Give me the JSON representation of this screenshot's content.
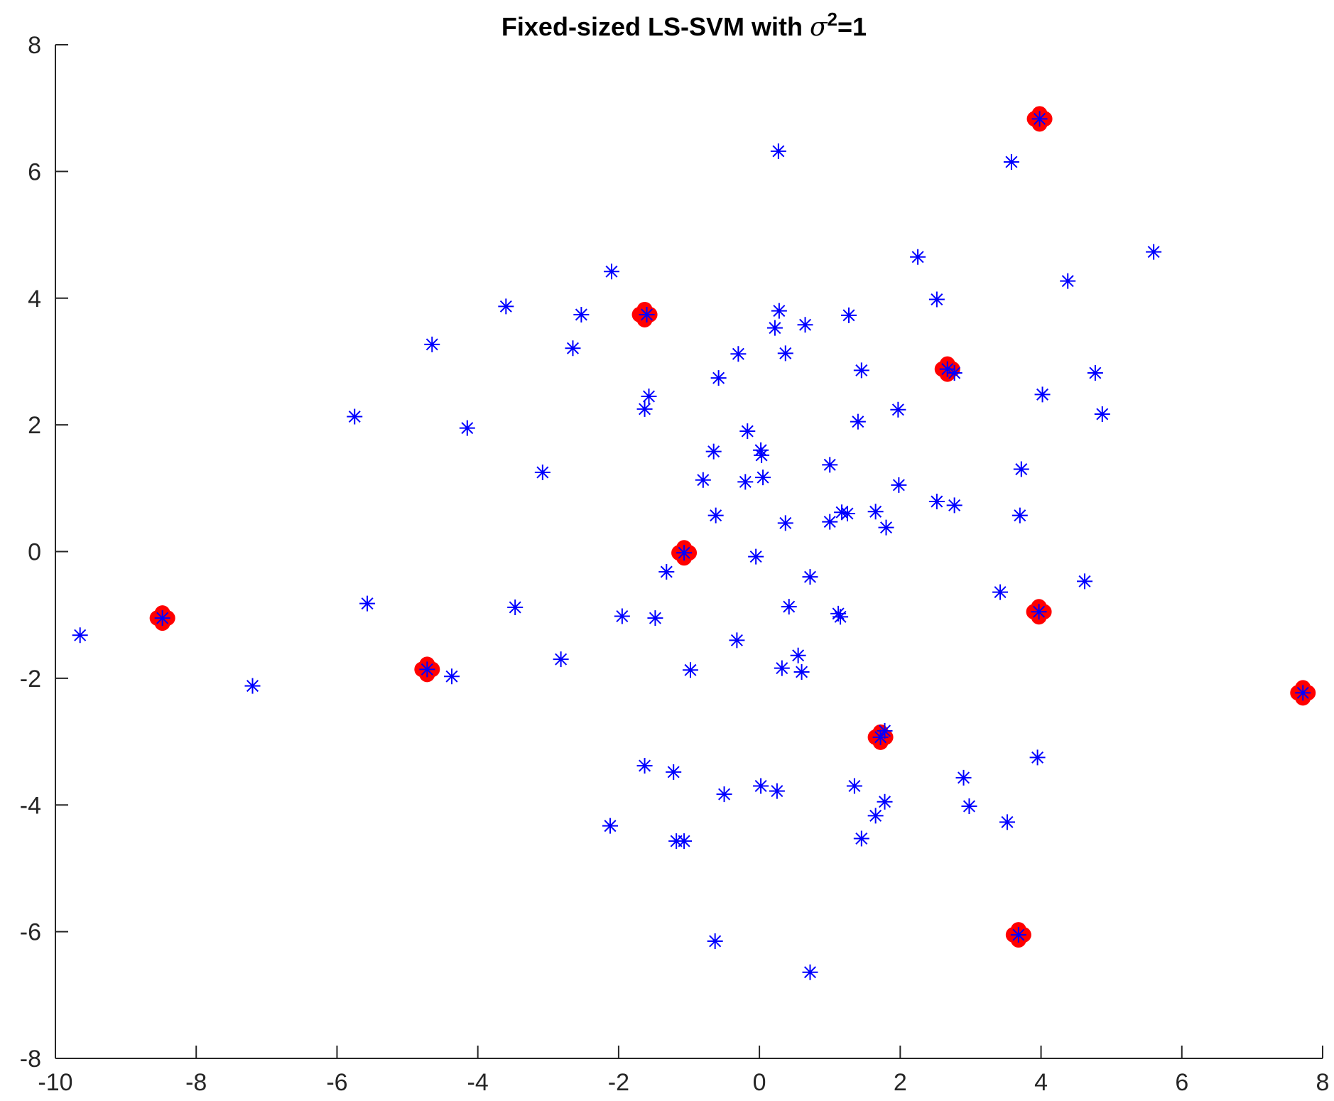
{
  "chart_data": {
    "type": "scatter",
    "title": {
      "prefix": "Fixed-sized LS-SVM with ",
      "symbol": "σ",
      "superscript": "2",
      "suffix": "=1"
    },
    "xlabel": "",
    "ylabel": "",
    "xlim": [
      -10,
      8
    ],
    "ylim": [
      -8,
      8
    ],
    "xticks": [
      -10,
      -8,
      -6,
      -4,
      -2,
      0,
      2,
      4,
      6,
      8
    ],
    "yticks": [
      -8,
      -6,
      -4,
      -2,
      0,
      2,
      4,
      6,
      8
    ],
    "grid": false,
    "legend": "none",
    "series": [
      {
        "marker": "asterisk",
        "color": "#0000ff",
        "points": [
          [
            -9.65,
            -1.32
          ],
          [
            -7.2,
            -2.12
          ],
          [
            -5.75,
            2.13
          ],
          [
            -5.57,
            -0.82
          ],
          [
            -4.65,
            3.27
          ],
          [
            -4.37,
            -1.97
          ],
          [
            -4.15,
            1.95
          ],
          [
            -3.6,
            3.87
          ],
          [
            -3.47,
            -0.88
          ],
          [
            -3.08,
            1.25
          ],
          [
            -2.82,
            -1.7
          ],
          [
            -2.65,
            3.21
          ],
          [
            -2.53,
            3.74
          ],
          [
            -2.1,
            4.42
          ],
          [
            -2.12,
            -4.33
          ],
          [
            -1.95,
            -1.02
          ],
          [
            -1.63,
            -3.38
          ],
          [
            -1.6,
            3.74
          ],
          [
            -1.63,
            2.25
          ],
          [
            -1.57,
            2.45
          ],
          [
            -1.48,
            -1.05
          ],
          [
            -1.22,
            -3.48
          ],
          [
            -1.18,
            -4.57
          ],
          [
            -1.07,
            -4.57
          ],
          [
            -1.07,
            -0.02
          ],
          [
            -1.32,
            -0.32
          ],
          [
            -0.98,
            -1.87
          ],
          [
            -0.8,
            1.13
          ],
          [
            -0.65,
            1.58
          ],
          [
            -0.62,
            0.57
          ],
          [
            -0.58,
            2.74
          ],
          [
            -0.5,
            -3.83
          ],
          [
            -0.63,
            -6.15
          ],
          [
            -0.3,
            3.12
          ],
          [
            -0.32,
            -1.4
          ],
          [
            -0.17,
            1.9
          ],
          [
            -0.2,
            1.1
          ],
          [
            -0.05,
            -0.08
          ],
          [
            0.02,
            1.6
          ],
          [
            0.05,
            1.17
          ],
          [
            0.03,
            1.52
          ],
          [
            0.02,
            -3.7
          ],
          [
            0.22,
            3.53
          ],
          [
            0.28,
            3.8
          ],
          [
            0.27,
            6.32
          ],
          [
            0.25,
            -3.78
          ],
          [
            0.32,
            -1.84
          ],
          [
            0.37,
            3.13
          ],
          [
            0.37,
            0.45
          ],
          [
            0.42,
            -0.87
          ],
          [
            0.55,
            -1.64
          ],
          [
            0.6,
            -1.9
          ],
          [
            0.65,
            3.58
          ],
          [
            0.72,
            -0.4
          ],
          [
            0.72,
            -6.64
          ],
          [
            1.0,
            0.47
          ],
          [
            1.0,
            1.37
          ],
          [
            1.12,
            -0.98
          ],
          [
            1.15,
            -1.03
          ],
          [
            1.17,
            0.62
          ],
          [
            1.25,
            0.6
          ],
          [
            1.27,
            3.73
          ],
          [
            1.35,
            -3.7
          ],
          [
            1.4,
            2.05
          ],
          [
            1.45,
            2.86
          ],
          [
            1.45,
            -4.53
          ],
          [
            1.65,
            0.63
          ],
          [
            1.65,
            -4.17
          ],
          [
            1.72,
            -2.93
          ],
          [
            1.8,
            0.38
          ],
          [
            1.78,
            -3.95
          ],
          [
            1.78,
            -2.83
          ],
          [
            1.97,
            2.24
          ],
          [
            1.98,
            1.05
          ],
          [
            2.25,
            4.65
          ],
          [
            2.52,
            3.98
          ],
          [
            2.52,
            0.79
          ],
          [
            2.67,
            2.88
          ],
          [
            2.77,
            2.82
          ],
          [
            2.77,
            0.73
          ],
          [
            2.9,
            -3.57
          ],
          [
            2.98,
            -4.02
          ],
          [
            3.42,
            -0.64
          ],
          [
            3.52,
            -4.27
          ],
          [
            3.58,
            6.15
          ],
          [
            3.68,
            -6.05
          ],
          [
            3.7,
            0.57
          ],
          [
            3.72,
            1.3
          ],
          [
            3.95,
            -3.25
          ],
          [
            3.97,
            -0.95
          ],
          [
            3.98,
            6.83
          ],
          [
            4.02,
            2.48
          ],
          [
            4.38,
            4.27
          ],
          [
            4.62,
            -0.47
          ],
          [
            4.77,
            2.82
          ],
          [
            4.87,
            2.17
          ],
          [
            5.6,
            4.73
          ],
          [
            7.72,
            -2.23
          ],
          [
            -8.48,
            -1.05
          ],
          [
            -4.72,
            -1.86
          ]
        ]
      },
      {
        "marker": "filled-circle-cluster",
        "color": "#ff0000",
        "points": [
          [
            3.98,
            6.83
          ],
          [
            -1.63,
            3.74
          ],
          [
            2.67,
            2.88
          ],
          [
            -1.07,
            -0.02
          ],
          [
            -8.48,
            -1.05
          ],
          [
            3.97,
            -0.95
          ],
          [
            -4.72,
            -1.86
          ],
          [
            7.72,
            -2.23
          ],
          [
            1.72,
            -2.93
          ],
          [
            3.68,
            -6.05
          ]
        ]
      }
    ]
  }
}
